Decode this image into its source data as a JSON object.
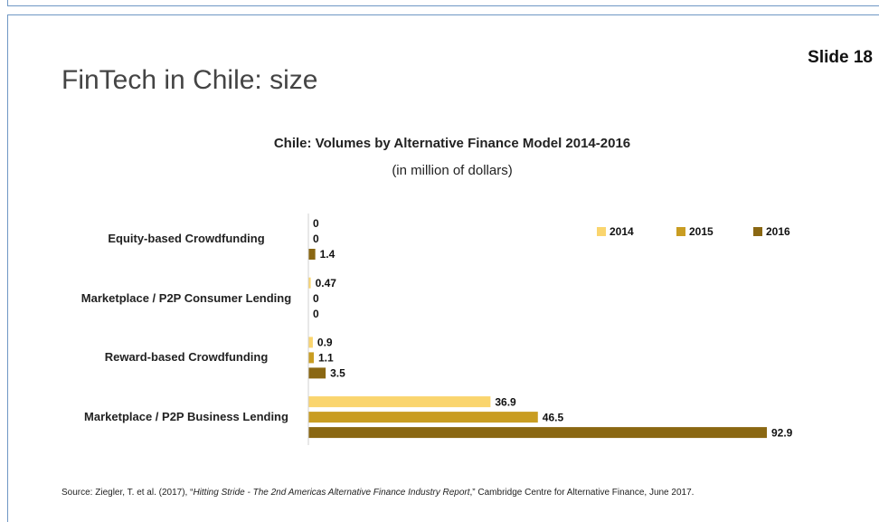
{
  "slide_number": "Slide 18",
  "title": "FinTech in Chile: size",
  "chart_data": {
    "type": "barh",
    "title": "Chile: Volumes by Alternative Finance Model 2014-2016",
    "subtitle": "(in million of dollars)",
    "categories": [
      "Equity-based Crowdfunding",
      "Marketplace / P2P Consumer Lending",
      "Reward-based Crowdfunding",
      "Marketplace / P2P Business Lending"
    ],
    "series": [
      {
        "name": "2014",
        "color": "#fad56e",
        "values": [
          0,
          0.47,
          0.9,
          36.9
        ]
      },
      {
        "name": "2015",
        "color": "#c99d22",
        "values": [
          0,
          0,
          1.1,
          46.5
        ]
      },
      {
        "name": "2016",
        "color": "#8a6712",
        "values": [
          1.4,
          0,
          3.5,
          92.9
        ]
      }
    ],
    "legend": "top-right"
  },
  "source": {
    "prefix": "Source: Ziegler, T. et al. (2017), “",
    "title": "Hitting Stride - The 2nd Americas Alternative Finance Industry Report",
    "suffix": ",” Cambridge Centre for Alternative Finance, June 2017."
  }
}
